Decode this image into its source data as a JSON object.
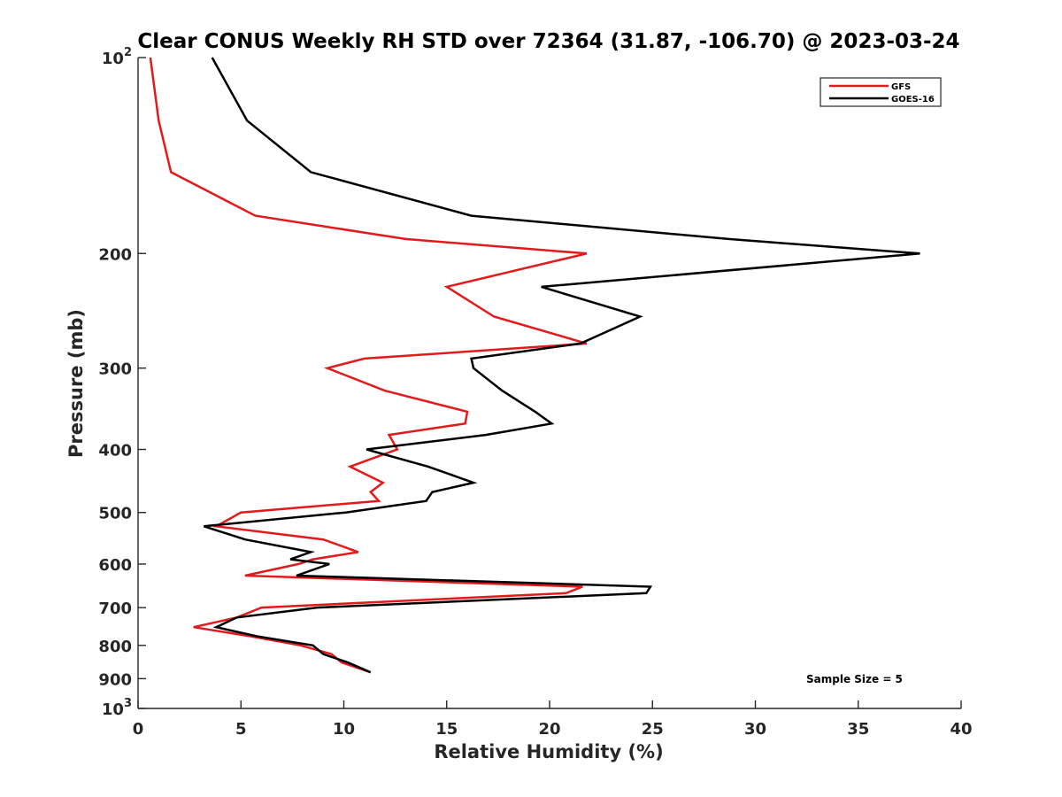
{
  "chart_data": {
    "type": "line",
    "title": "Clear CONUS Weekly RH STD over 72364 (31.87, -106.70) @ 2023-03-24",
    "xlabel": "Relative Humidity (%)",
    "ylabel": "Pressure (mb)",
    "xlim": [
      0,
      40
    ],
    "ylim": [
      100,
      1000
    ],
    "y_scale": "log",
    "y_reversed": true,
    "grid": false,
    "legend_position": "top-right",
    "x_ticks": [
      "0",
      "5",
      "10",
      "15",
      "20",
      "25",
      "30",
      "35",
      "40"
    ],
    "y_ticks": [
      {
        "value": 100,
        "label": "10",
        "sup": "2"
      },
      {
        "value": 200,
        "label": "200",
        "sup": ""
      },
      {
        "value": 300,
        "label": "300",
        "sup": ""
      },
      {
        "value": 400,
        "label": "400",
        "sup": ""
      },
      {
        "value": 500,
        "label": "500",
        "sup": ""
      },
      {
        "value": 600,
        "label": "600",
        "sup": ""
      },
      {
        "value": 700,
        "label": "700",
        "sup": ""
      },
      {
        "value": 800,
        "label": "800",
        "sup": ""
      },
      {
        "value": 900,
        "label": "900",
        "sup": ""
      },
      {
        "value": 1000,
        "label": "10",
        "sup": "3"
      }
    ],
    "series": [
      {
        "name": "GFS",
        "color": "#e31a1c",
        "points": [
          [
            0.6,
            100
          ],
          [
            1.0,
            125
          ],
          [
            1.6,
            150
          ],
          [
            5.7,
            175
          ],
          [
            13.0,
            190
          ],
          [
            21.8,
            200
          ],
          [
            15.0,
            225
          ],
          [
            17.3,
            250
          ],
          [
            21.8,
            275
          ],
          [
            11.0,
            290
          ],
          [
            9.2,
            300
          ],
          [
            12.0,
            325
          ],
          [
            16.0,
            350
          ],
          [
            15.9,
            365
          ],
          [
            12.2,
            380
          ],
          [
            12.6,
            400
          ],
          [
            10.3,
            425
          ],
          [
            11.9,
            450
          ],
          [
            11.3,
            465
          ],
          [
            11.7,
            480
          ],
          [
            5.0,
            500
          ],
          [
            3.8,
            525
          ],
          [
            9.0,
            550
          ],
          [
            10.7,
            575
          ],
          [
            8.5,
            590
          ],
          [
            7.8,
            600
          ],
          [
            5.2,
            625
          ],
          [
            21.6,
            650
          ],
          [
            20.8,
            665
          ],
          [
            6.0,
            700
          ],
          [
            4.8,
            725
          ],
          [
            2.7,
            750
          ],
          [
            5.5,
            775
          ],
          [
            7.9,
            800
          ],
          [
            9.4,
            825
          ],
          [
            9.9,
            850
          ],
          [
            11.3,
            880
          ]
        ]
      },
      {
        "name": "GOES-16",
        "color": "#000000",
        "points": [
          [
            3.6,
            100
          ],
          [
            5.3,
            125
          ],
          [
            8.4,
            150
          ],
          [
            16.2,
            175
          ],
          [
            28.7,
            190
          ],
          [
            38.0,
            200
          ],
          [
            19.6,
            225
          ],
          [
            24.4,
            250
          ],
          [
            21.5,
            275
          ],
          [
            16.2,
            290
          ],
          [
            16.3,
            300
          ],
          [
            17.7,
            325
          ],
          [
            19.3,
            350
          ],
          [
            20.1,
            365
          ],
          [
            16.9,
            380
          ],
          [
            11.1,
            400
          ],
          [
            14.1,
            425
          ],
          [
            16.3,
            450
          ],
          [
            14.3,
            465
          ],
          [
            14.0,
            480
          ],
          [
            10.1,
            500
          ],
          [
            3.2,
            525
          ],
          [
            5.2,
            550
          ],
          [
            8.4,
            575
          ],
          [
            7.4,
            590
          ],
          [
            9.3,
            600
          ],
          [
            7.7,
            625
          ],
          [
            24.9,
            650
          ],
          [
            24.7,
            665
          ],
          [
            8.7,
            700
          ],
          [
            4.8,
            725
          ],
          [
            3.8,
            750
          ],
          [
            5.8,
            775
          ],
          [
            8.5,
            800
          ],
          [
            9.0,
            825
          ],
          [
            10.2,
            850
          ],
          [
            11.3,
            880
          ]
        ]
      }
    ],
    "annotation": "Sample Size = 5"
  }
}
